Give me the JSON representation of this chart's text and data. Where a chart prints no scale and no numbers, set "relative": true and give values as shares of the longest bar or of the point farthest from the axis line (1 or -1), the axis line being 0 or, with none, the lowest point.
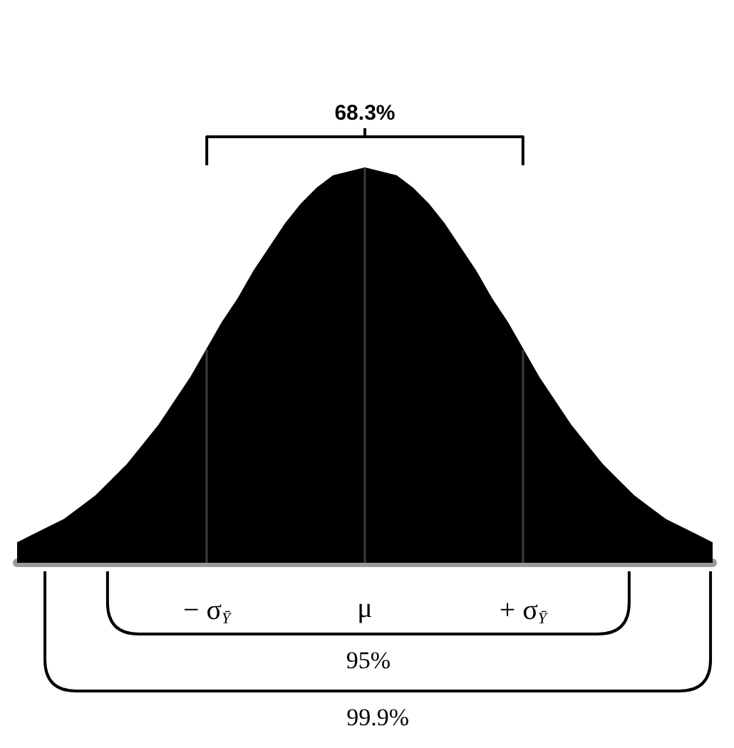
{
  "chart_data": {
    "type": "area",
    "relative": true,
    "color": "#000000",
    "marker": "none",
    "categories": [
      null,
      null,
      null,
      null,
      null,
      null,
      null,
      null,
      null,
      null,
      null,
      null,
      "− σ$_{Ȳ}$",
      null,
      null,
      null,
      null,
      null,
      null,
      null,
      null,
      null,
      "μ",
      null,
      null,
      null,
      null,
      null,
      null,
      null,
      null,
      null,
      "+ σ$_{Ȳ}$",
      null,
      null,
      null,
      null,
      null,
      null,
      null,
      null,
      null,
      null,
      null,
      null
    ],
    "values": [
      0.05,
      0.07,
      0.09,
      0.11,
      0.14,
      0.17,
      0.21,
      0.25,
      0.3,
      0.35,
      0.41,
      0.47,
      0.54,
      0.61,
      0.67,
      0.74,
      0.8,
      0.86,
      0.91,
      0.95,
      0.98,
      0.99,
      1,
      0.99,
      0.98,
      0.95,
      0.91,
      0.86,
      0.8,
      0.74,
      0.67,
      0.61,
      0.54,
      0.47,
      0.41,
      0.35,
      0.3,
      0.25,
      0.21,
      0.17,
      0.14,
      0.11,
      0.09,
      0.07,
      0.05
    ],
    "ref_lines": [
      {
        "axis": "x",
        "value": "− σ$_{Ȳ}$",
        "color": "#3a3a3a"
      },
      {
        "axis": "x",
        "value": "μ",
        "color": "#3a3a3a"
      },
      {
        "axis": "x",
        "value": "+ σ$_{Ȳ}$",
        "color": "#3a3a3a"
      }
    ],
    "annotations": [
      "68.3%",
      "95%",
      "99.9%"
    ]
  }
}
